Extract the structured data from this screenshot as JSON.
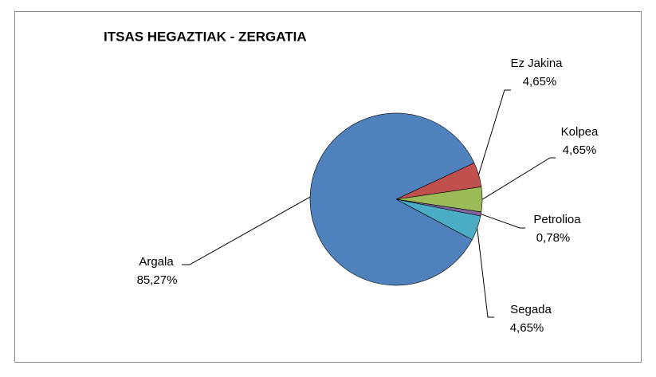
{
  "chart_data": {
    "type": "pie",
    "title": "ITSAS HEGAZTIAK - ZERGATIA",
    "categories": [
      "Ez Jakina",
      "Kolpea",
      "Petrolioa",
      "Segada",
      "Argala"
    ],
    "values": [
      4.65,
      4.65,
      0.78,
      4.65,
      85.27
    ],
    "value_labels": [
      "4,65%",
      "4,65%",
      "0,78%",
      "4,65%",
      "85,27%"
    ],
    "colors": [
      "#c0504d",
      "#9bbb59",
      "#8064a2",
      "#4bacc6",
      "#4f81bd"
    ]
  }
}
